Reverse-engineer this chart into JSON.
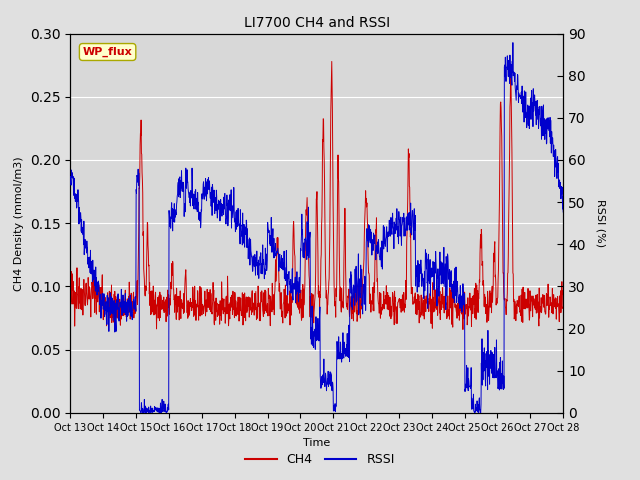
{
  "title": "LI7700 CH4 and RSSI",
  "xlabel": "Time",
  "ylabel_left": "CH4 Density (mmol/m3)",
  "ylabel_right": "RSSI (%)",
  "xlim": [
    0,
    15
  ],
  "ylim_left": [
    0.0,
    0.3
  ],
  "ylim_right": [
    0,
    90
  ],
  "yticks_left": [
    0.0,
    0.05,
    0.1,
    0.15,
    0.2,
    0.25,
    0.3
  ],
  "yticks_right": [
    0,
    10,
    20,
    30,
    40,
    50,
    60,
    70,
    80,
    90
  ],
  "xtick_labels": [
    "Oct 13",
    "Oct 14",
    "Oct 15",
    "Oct 16",
    "Oct 17",
    "Oct 18",
    "Oct 19",
    "Oct 20",
    "Oct 21",
    "Oct 22",
    "Oct 23",
    "Oct 24",
    "Oct 25",
    "Oct 26",
    "Oct 27",
    "Oct 28"
  ],
  "color_ch4": "#cc0000",
  "color_rssi": "#0000cc",
  "bg_outer": "#e0e0e0",
  "bg_inner": "#d8d8d8",
  "annotation_text": "WP_flux",
  "annotation_bg": "#ffffcc",
  "annotation_border": "#aaa800",
  "legend_ch4": "CH4",
  "legend_rssi": "RSSI"
}
